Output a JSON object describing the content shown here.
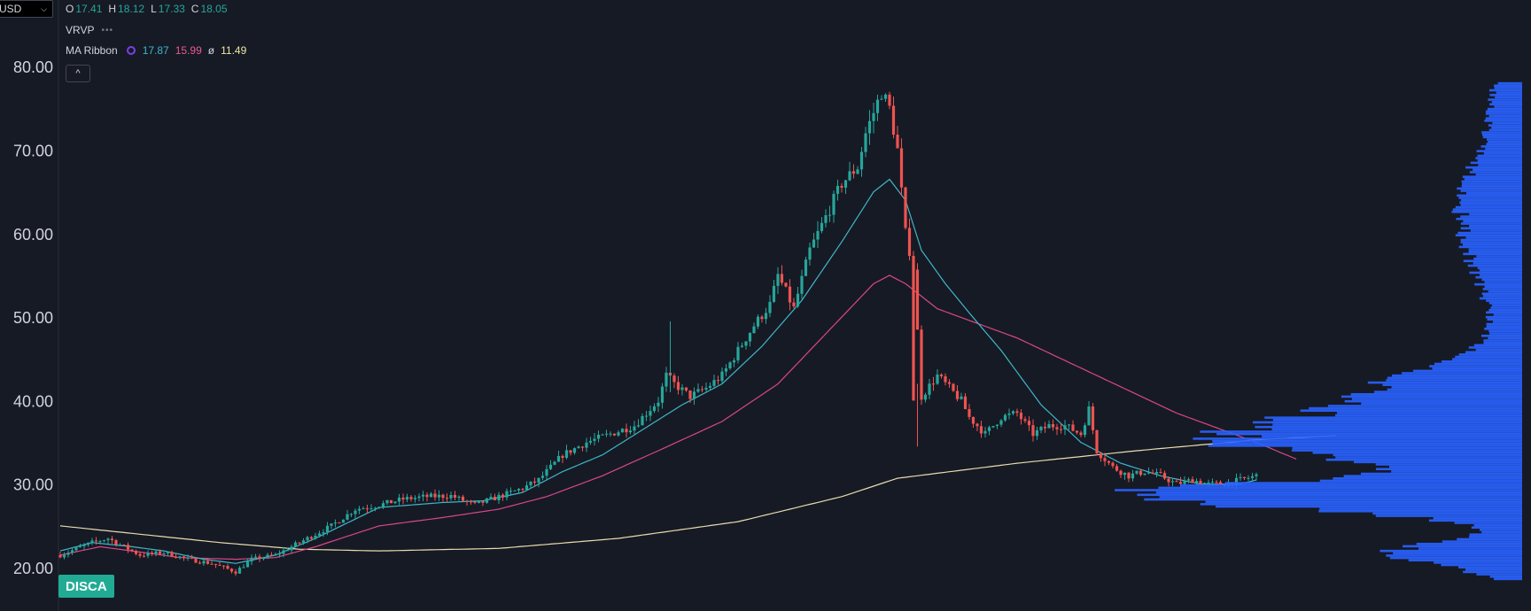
{
  "header": {
    "currency_label": "USD",
    "ohlc": {
      "o_label": "O",
      "o": "17.41",
      "h_label": "H",
      "h": "18.12",
      "l_label": "L",
      "l": "17.33",
      "c_label": "C",
      "c": "18.05"
    },
    "vrvp_label": "VRVP",
    "ma_ribbon_label": "MA Ribbon",
    "ma_values": [
      "17.87",
      "15.99",
      "11.49"
    ],
    "ma_sep": "ø",
    "collapse_icon": "^"
  },
  "ticker": "DISCA",
  "colors": {
    "up": "#26a69a",
    "down": "#ef5350",
    "ma1": "#3fb6c8",
    "ma2": "#d9468a",
    "ma3": "#e8dcae",
    "volume_profile": "#2962ff",
    "background": "#161a25"
  },
  "chart_data": {
    "type": "candlestick",
    "title": "",
    "ylim": [
      17,
      88
    ],
    "y_ticks": [
      "80.00",
      "70.00",
      "60.00",
      "50.00",
      "40.00",
      "30.00",
      "20.00"
    ],
    "grid": false,
    "candle_anchors_close": [
      [
        0,
        21.5
      ],
      [
        8,
        23
      ],
      [
        12,
        23.5
      ],
      [
        16,
        22.5
      ],
      [
        20,
        21.5
      ],
      [
        26,
        21.8
      ],
      [
        32,
        21
      ],
      [
        38,
        20.5
      ],
      [
        44,
        19.5
      ],
      [
        48,
        21
      ],
      [
        54,
        21.5
      ],
      [
        58,
        22.5
      ],
      [
        64,
        24
      ],
      [
        68,
        25
      ],
      [
        74,
        27
      ],
      [
        80,
        27.5
      ],
      [
        86,
        28.2
      ],
      [
        92,
        28.5
      ],
      [
        98,
        28.6
      ],
      [
        104,
        27.5
      ],
      [
        110,
        28.5
      ],
      [
        116,
        29.5
      ],
      [
        120,
        30.5
      ],
      [
        126,
        33.5
      ],
      [
        132,
        35
      ],
      [
        138,
        36
      ],
      [
        144,
        37
      ],
      [
        150,
        40
      ],
      [
        152,
        43
      ],
      [
        154,
        42
      ],
      [
        158,
        40.5
      ],
      [
        162,
        41.5
      ],
      [
        166,
        43
      ],
      [
        170,
        46
      ],
      [
        174,
        49
      ],
      [
        178,
        51.5
      ],
      [
        180,
        55
      ],
      [
        184,
        51
      ],
      [
        188,
        58
      ],
      [
        192,
        62
      ],
      [
        196,
        66
      ],
      [
        200,
        68
      ],
      [
        202,
        72
      ],
      [
        206,
        77
      ],
      [
        208,
        75
      ],
      [
        210,
        70
      ],
      [
        212,
        60
      ],
      [
        214,
        56
      ],
      [
        216,
        40.5
      ],
      [
        220,
        43
      ],
      [
        224,
        41
      ],
      [
        226,
        40
      ],
      [
        228,
        38
      ],
      [
        232,
        36
      ],
      [
        236,
        38
      ],
      [
        240,
        38.5
      ],
      [
        244,
        36
      ],
      [
        248,
        37
      ],
      [
        252,
        37
      ],
      [
        256,
        36
      ],
      [
        258,
        39
      ],
      [
        260,
        34
      ],
      [
        264,
        32
      ],
      [
        268,
        31
      ],
      [
        272,
        31.5
      ],
      [
        276,
        31
      ],
      [
        280,
        30
      ],
      [
        284,
        30.5
      ],
      [
        288,
        30
      ],
      [
        292,
        30
      ],
      [
        296,
        30.5
      ],
      [
        300,
        31
      ]
    ],
    "ma_ribbon": {
      "fast": [
        [
          0,
          22
        ],
        [
          8,
          23
        ],
        [
          18,
          22.5
        ],
        [
          26,
          22
        ],
        [
          36,
          21
        ],
        [
          44,
          20.5
        ],
        [
          54,
          21.5
        ],
        [
          64,
          23.5
        ],
        [
          80,
          27.2
        ],
        [
          96,
          27.8
        ],
        [
          106,
          28
        ],
        [
          116,
          29
        ],
        [
          126,
          31.5
        ],
        [
          136,
          33.5
        ],
        [
          146,
          36.5
        ],
        [
          156,
          39.5
        ],
        [
          166,
          42
        ],
        [
          176,
          46.5
        ],
        [
          186,
          52
        ],
        [
          196,
          59
        ],
        [
          204,
          65
        ],
        [
          208,
          66.5
        ],
        [
          212,
          64
        ],
        [
          216,
          58
        ],
        [
          222,
          54
        ],
        [
          228,
          50.5
        ],
        [
          236,
          46
        ],
        [
          246,
          39.5
        ],
        [
          256,
          35
        ],
        [
          266,
          32.5
        ],
        [
          276,
          31
        ],
        [
          286,
          30
        ],
        [
          296,
          30
        ],
        [
          300,
          30.5
        ]
      ],
      "medium": [
        [
          0,
          21.5
        ],
        [
          10,
          22.5
        ],
        [
          18,
          22
        ],
        [
          30,
          21.2
        ],
        [
          44,
          21
        ],
        [
          54,
          21.2
        ],
        [
          64,
          22.5
        ],
        [
          80,
          25
        ],
        [
          96,
          26
        ],
        [
          110,
          27
        ],
        [
          122,
          28.5
        ],
        [
          136,
          31
        ],
        [
          150,
          34
        ],
        [
          166,
          37.5
        ],
        [
          180,
          42
        ],
        [
          192,
          48
        ],
        [
          204,
          54
        ],
        [
          208,
          55
        ],
        [
          212,
          54
        ],
        [
          220,
          51
        ],
        [
          240,
          47.5
        ],
        [
          260,
          43
        ],
        [
          280,
          38.5
        ],
        [
          300,
          35
        ],
        [
          310,
          33
        ]
      ],
      "slow": [
        [
          0,
          25
        ],
        [
          20,
          24
        ],
        [
          40,
          23
        ],
        [
          60,
          22.2
        ],
        [
          80,
          22
        ],
        [
          110,
          22.3
        ],
        [
          140,
          23.5
        ],
        [
          170,
          25.5
        ],
        [
          196,
          28.5
        ],
        [
          210,
          30.7
        ],
        [
          240,
          32.5
        ],
        [
          270,
          34
        ],
        [
          300,
          35.3
        ],
        [
          320,
          35.8
        ]
      ]
    },
    "volume_profile_peak_price": 28.5
  }
}
